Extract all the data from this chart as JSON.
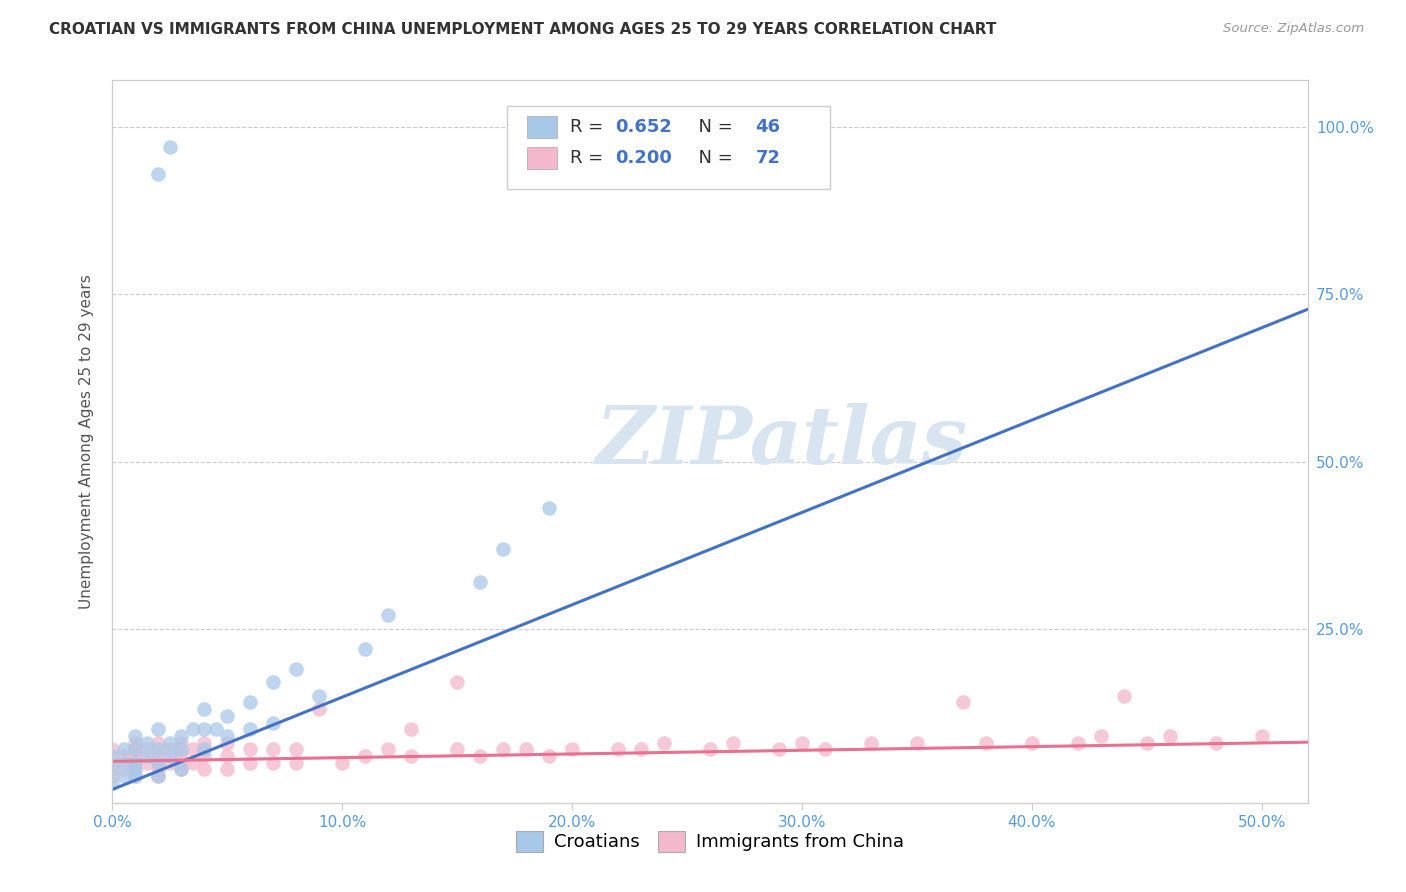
{
  "title": "CROATIAN VS IMMIGRANTS FROM CHINA UNEMPLOYMENT AMONG AGES 25 TO 29 YEARS CORRELATION CHART",
  "source": "Source: ZipAtlas.com",
  "ylabel": "Unemployment Among Ages 25 to 29 years",
  "xlim": [
    0.0,
    0.52
  ],
  "ylim": [
    -0.01,
    1.07
  ],
  "croatian_color": "#a8c8e8",
  "china_color": "#f4b8cc",
  "croatian_line_color": "#4472c4",
  "china_line_color": "#f4a0b8",
  "croatian_R": "0.652",
  "croatian_N": "46",
  "china_R": "0.200",
  "china_N": "72",
  "r_color": "#4472c4",
  "n_color": "#4472c4",
  "watermark_text": "ZIPatlas",
  "watermark_color": "#d8e4f0",
  "legend_label_croatian": "Croatians",
  "legend_label_china": "Immigrants from China",
  "xticks": [
    0.0,
    0.1,
    0.2,
    0.3,
    0.4,
    0.5
  ],
  "yticks_right": [
    0.25,
    0.5,
    0.75,
    1.0
  ],
  "ytick_labels_right": [
    "25.0%",
    "50.0%",
    "75.0%",
    "100.0%"
  ],
  "xtick_labels": [
    "0.0%",
    "10.0%",
    "20.0%",
    "30.0%",
    "40.0%",
    "50.0%"
  ]
}
